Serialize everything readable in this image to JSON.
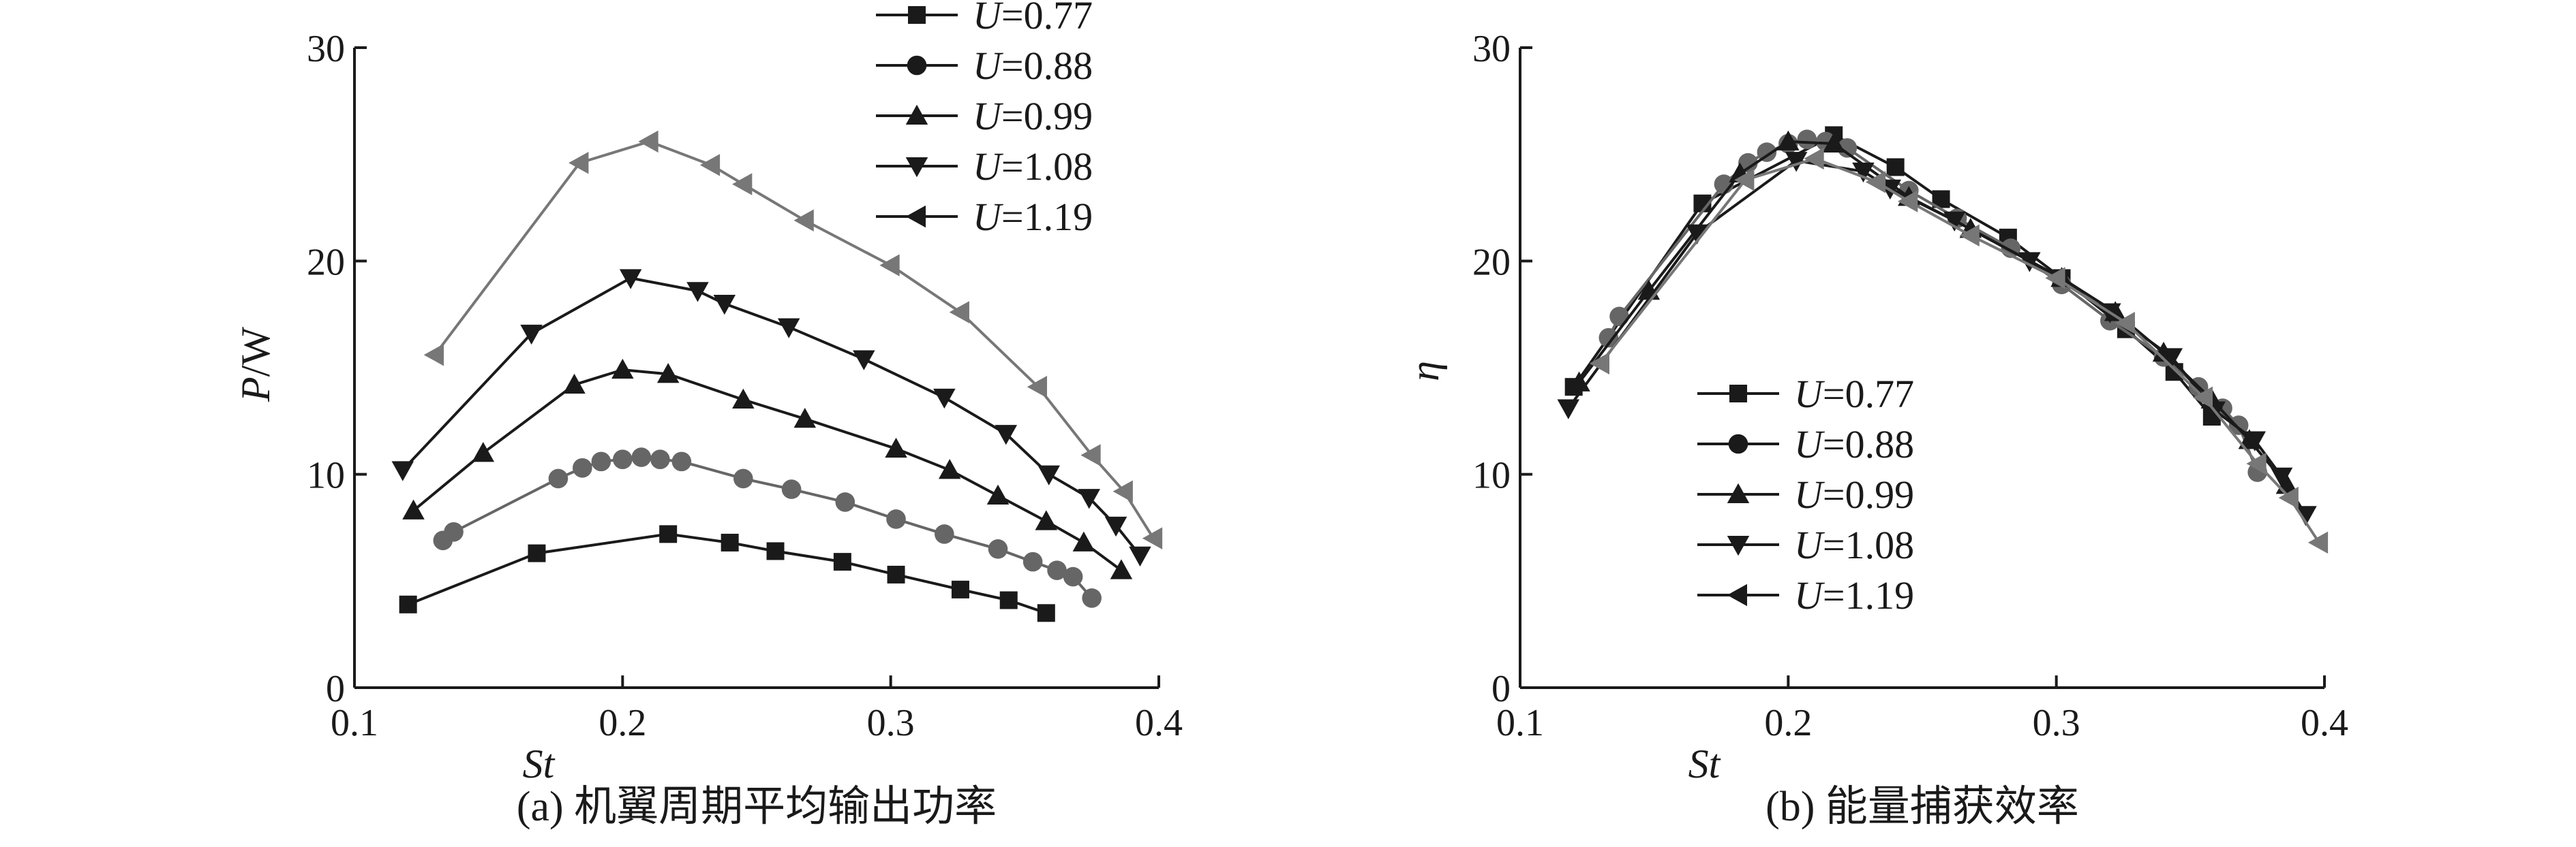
{
  "chart_data": [
    {
      "type": "line",
      "caption": "(a) 机翼周期平均输出功率",
      "xlabel": "St",
      "ylabel": "P/W",
      "xlim": [
        0.1,
        0.4
      ],
      "ylim": [
        0,
        30
      ],
      "xticks": [
        "0.1",
        "0.2",
        "0.3",
        "0.4"
      ],
      "yticks": [
        "0",
        "10",
        "20",
        "30"
      ],
      "grid": false,
      "legend_position": "top-right",
      "series": [
        {
          "name": "U=0.77",
          "prefix": "U",
          "suffix": "=0.77",
          "marker": "square",
          "color": "#1a1a1a",
          "x": [
            0.12,
            0.168,
            0.217,
            0.24,
            0.257,
            0.282,
            0.302,
            0.326,
            0.344,
            0.358
          ],
          "y": [
            3.9,
            6.3,
            7.2,
            6.8,
            6.4,
            5.9,
            5.3,
            4.6,
            4.1,
            3.5
          ]
        },
        {
          "name": "U=0.88",
          "prefix": "U",
          "suffix": "=0.88",
          "marker": "circle",
          "color": "#666666",
          "x": [
            0.133,
            0.137,
            0.176,
            0.185,
            0.192,
            0.2,
            0.207,
            0.214,
            0.222,
            0.245,
            0.263,
            0.283,
            0.302,
            0.32,
            0.34,
            0.353,
            0.362,
            0.368,
            0.375
          ],
          "y": [
            6.9,
            7.3,
            9.8,
            10.3,
            10.6,
            10.7,
            10.8,
            10.7,
            10.6,
            9.8,
            9.3,
            8.7,
            7.9,
            7.2,
            6.5,
            5.9,
            5.5,
            5.2,
            4.2
          ]
        },
        {
          "name": "U=0.99",
          "prefix": "U",
          "suffix": "=0.99",
          "marker": "triangle-up",
          "color": "#1a1a1a",
          "x": [
            0.122,
            0.148,
            0.182,
            0.2,
            0.217,
            0.245,
            0.268,
            0.302,
            0.322,
            0.34,
            0.358,
            0.372,
            0.386
          ],
          "y": [
            8.3,
            11.0,
            14.2,
            14.9,
            14.7,
            13.5,
            12.6,
            11.2,
            10.2,
            9.0,
            7.8,
            6.8,
            5.5
          ]
        },
        {
          "name": "U=1.08",
          "prefix": "U",
          "suffix": "=1.08",
          "marker": "triangle-down",
          "color": "#1a1a1a",
          "x": [
            0.118,
            0.166,
            0.203,
            0.228,
            0.238,
            0.262,
            0.29,
            0.32,
            0.343,
            0.359,
            0.374,
            0.384,
            0.393
          ],
          "y": [
            10.2,
            16.6,
            19.2,
            18.6,
            18.0,
            16.9,
            15.4,
            13.6,
            11.9,
            10.0,
            8.9,
            7.6,
            6.2
          ]
        },
        {
          "name": "U=1.19",
          "prefix": "U",
          "suffix": "=1.19",
          "marker": "triangle-left",
          "color": "#777777",
          "x": [
            0.13,
            0.184,
            0.21,
            0.233,
            0.245,
            0.268,
            0.3,
            0.326,
            0.355,
            0.375,
            0.387,
            0.398
          ],
          "y": [
            15.6,
            24.6,
            25.6,
            24.5,
            23.6,
            21.9,
            19.8,
            17.6,
            14.1,
            10.9,
            9.2,
            7.0
          ]
        }
      ]
    },
    {
      "type": "line",
      "caption": "(b) 能量捕获效率",
      "xlabel": "St",
      "ylabel": "η",
      "xlim": [
        0.1,
        0.4
      ],
      "ylim": [
        0,
        30
      ],
      "xticks": [
        "0.1",
        "0.2",
        "0.3",
        "0.4"
      ],
      "yticks": [
        "0",
        "10",
        "20",
        "30"
      ],
      "grid": false,
      "legend_position": "center-left",
      "series": [
        {
          "name": "U=0.77",
          "prefix": "U",
          "suffix": "=0.77",
          "marker": "square",
          "color": "#1a1a1a",
          "x": [
            0.12,
            0.168,
            0.217,
            0.24,
            0.257,
            0.282,
            0.302,
            0.326,
            0.344,
            0.358
          ],
          "y": [
            14.1,
            22.7,
            25.9,
            24.4,
            22.9,
            21.1,
            19.2,
            16.8,
            14.8,
            12.7
          ]
        },
        {
          "name": "U=0.88",
          "prefix": "U",
          "suffix": "=0.88",
          "marker": "circle",
          "color": "#666666",
          "x": [
            0.133,
            0.137,
            0.176,
            0.185,
            0.192,
            0.2,
            0.207,
            0.214,
            0.222,
            0.245,
            0.263,
            0.283,
            0.302,
            0.32,
            0.34,
            0.353,
            0.362,
            0.368,
            0.375
          ],
          "y": [
            16.4,
            17.4,
            23.6,
            24.6,
            25.1,
            25.5,
            25.7,
            25.6,
            25.3,
            23.3,
            22.0,
            20.6,
            18.9,
            17.2,
            15.5,
            14.1,
            13.1,
            12.3,
            10.1
          ]
        },
        {
          "name": "U=0.99",
          "prefix": "U",
          "suffix": "=0.99",
          "marker": "triangle-up",
          "color": "#1a1a1a",
          "x": [
            0.122,
            0.148,
            0.182,
            0.2,
            0.217,
            0.245,
            0.268,
            0.302,
            0.322,
            0.34,
            0.358,
            0.372,
            0.386
          ],
          "y": [
            14.3,
            18.6,
            24.1,
            25.6,
            25.5,
            23.0,
            21.5,
            19.2,
            17.6,
            15.7,
            13.5,
            11.6,
            9.5
          ]
        },
        {
          "name": "U=1.08",
          "prefix": "U",
          "suffix": "=1.08",
          "marker": "triangle-down",
          "color": "#1a1a1a",
          "x": [
            0.118,
            0.166,
            0.203,
            0.228,
            0.238,
            0.262,
            0.29,
            0.32,
            0.343,
            0.359,
            0.374,
            0.384,
            0.393
          ],
          "y": [
            13.1,
            21.3,
            24.7,
            24.2,
            23.4,
            21.9,
            20.0,
            17.6,
            15.5,
            13.0,
            11.6,
            9.9,
            8.1
          ]
        },
        {
          "name": "U=1.19",
          "prefix": "U",
          "suffix": "=1.19",
          "marker": "triangle-left",
          "color": "#777777",
          "x": [
            0.13,
            0.184,
            0.21,
            0.233,
            0.245,
            0.268,
            0.3,
            0.326,
            0.355,
            0.375,
            0.387,
            0.398
          ],
          "y": [
            15.2,
            23.8,
            24.8,
            23.7,
            22.8,
            21.2,
            19.2,
            17.1,
            13.6,
            10.5,
            8.9,
            6.8
          ]
        }
      ]
    }
  ]
}
